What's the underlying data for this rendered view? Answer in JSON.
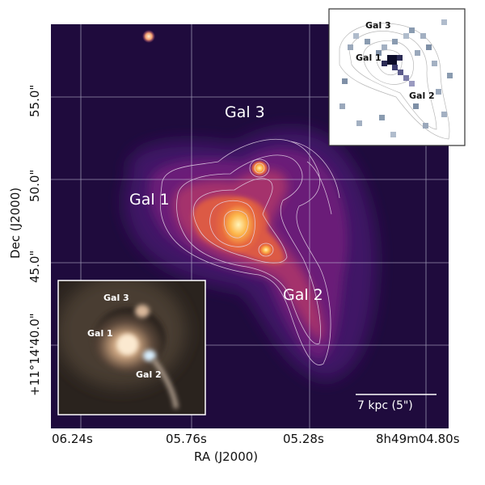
{
  "image": {
    "kind": "astronomical false-color image of three interacting galaxies with contour overlay and two inset images",
    "colormap": [
      "#1a0a35",
      "#3a1260",
      "#7a1f7a",
      "#b23a6a",
      "#e0643f",
      "#f4a640",
      "#fde2a0"
    ]
  },
  "axes": {
    "xlabel": "RA (J2000)",
    "ylabel": "Dec (J2000)",
    "xticks": [
      "06.24s",
      "05.76s",
      "05.28s",
      "8h49m04.80s"
    ],
    "yticks": [
      "55.0\"",
      "50.0\"",
      "45.0\"",
      "+11°14'40.0\""
    ],
    "grid": true,
    "grid_color": "#c8c8dc"
  },
  "labels": {
    "gal1": "Gal 1",
    "gal2": "Gal 2",
    "gal3": "Gal 3"
  },
  "scalebar": {
    "label": "7 kpc (5\")",
    "color": "#ffffff"
  },
  "inset_top_right": {
    "gal1": "Gal 1",
    "gal2": "Gal 2",
    "gal3": "Gal 3",
    "background": "#ffffff"
  },
  "inset_bottom_left": {
    "gal1": "Gal 1",
    "gal2": "Gal 2",
    "gal3": "Gal 3"
  }
}
